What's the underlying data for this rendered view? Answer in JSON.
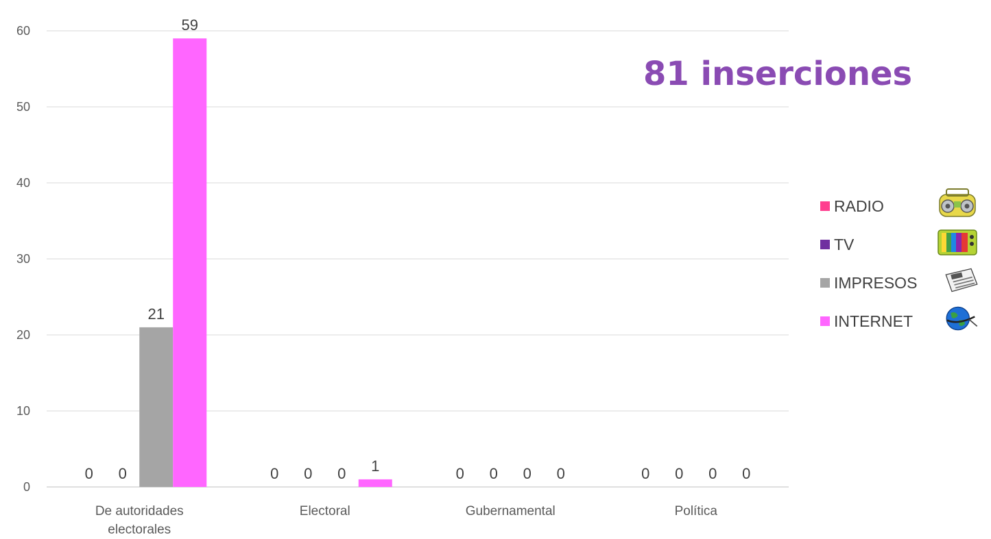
{
  "annotation": "81 inserciones",
  "legend": [
    {
      "label": "RADIO",
      "color": "#ff3f8f",
      "icon": "boombox-icon"
    },
    {
      "label": "TV",
      "color": "#7030a0",
      "icon": "television-icon"
    },
    {
      "label": "IMPRESOS",
      "color": "#a5a5a5",
      "icon": "newspaper-icon"
    },
    {
      "label": "INTERNET",
      "color": "#ff66ff",
      "icon": "globe-icon"
    }
  ],
  "chart_data": {
    "type": "bar",
    "categories": [
      [
        "De autoridades",
        "electorales"
      ],
      [
        "Electoral"
      ],
      [
        "Gubernamental"
      ],
      [
        "Política"
      ]
    ],
    "series": [
      {
        "name": "RADIO",
        "color": "#ff3f8f",
        "values": [
          0,
          0,
          0,
          0
        ]
      },
      {
        "name": "TV",
        "color": "#7030a0",
        "values": [
          0,
          0,
          0,
          0
        ]
      },
      {
        "name": "IMPRESOS",
        "color": "#a5a5a5",
        "values": [
          21,
          0,
          0,
          0
        ]
      },
      {
        "name": "INTERNET",
        "color": "#ff66ff",
        "values": [
          59,
          1,
          0,
          0
        ]
      }
    ],
    "data_labels": [
      [
        "0",
        "0",
        "21",
        "59"
      ],
      [
        "0",
        "0",
        "0",
        "1"
      ],
      [
        "0",
        "0",
        "0",
        "0"
      ],
      [
        "0",
        "0",
        "0",
        "0"
      ]
    ],
    "yticks": [
      0,
      10,
      20,
      30,
      40,
      50,
      60
    ],
    "ylim": [
      0,
      60
    ],
    "grid": true,
    "legend_position": "right"
  }
}
